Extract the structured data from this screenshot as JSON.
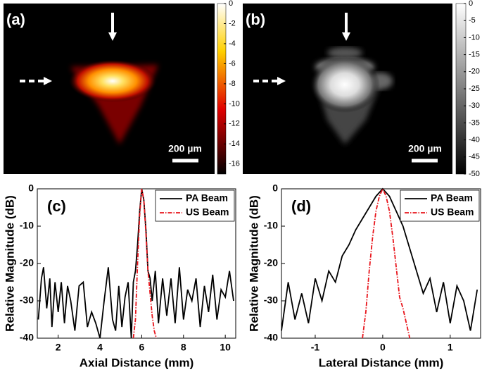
{
  "chart_data": [
    {
      "type": "image",
      "label": "(a)",
      "colormap": "hot",
      "clim": [
        -17,
        0
      ],
      "cticks": [
        0,
        -2,
        -4,
        -6,
        -8,
        -10,
        -12,
        -14,
        -16
      ],
      "scale_bar": "200 µm"
    },
    {
      "type": "image",
      "label": "(b)",
      "colormap": "gray",
      "clim": [
        -50,
        0
      ],
      "cticks": [
        0,
        -5,
        -10,
        -15,
        -20,
        -25,
        -30,
        -35,
        -40,
        -45,
        -50
      ],
      "scale_bar": "200 µm"
    },
    {
      "type": "line",
      "label": "(c)",
      "x_label": "Axial Distance (mm)",
      "y_label": "Relative Magnitude (dB)",
      "xlim": [
        1,
        10.5
      ],
      "ylim": [
        -40,
        0
      ],
      "xticks": [
        2,
        4,
        6,
        8,
        10
      ],
      "yticks": [
        0,
        -10,
        -20,
        -30,
        -40
      ],
      "legend": "upper right",
      "series": [
        {
          "name": "PA Beam",
          "color": "#000000",
          "style": "solid",
          "x": [
            1.05,
            1.2,
            1.3,
            1.45,
            1.6,
            1.7,
            1.85,
            2.0,
            2.15,
            2.3,
            2.45,
            2.6,
            2.8,
            3.0,
            3.2,
            3.4,
            3.6,
            3.8,
            4.0,
            4.2,
            4.4,
            4.6,
            4.75,
            4.9,
            5.05,
            5.2,
            5.35,
            5.5,
            5.6,
            5.7,
            5.8,
            5.9,
            6.0,
            6.1,
            6.2,
            6.3,
            6.4,
            6.5,
            6.65,
            6.8,
            7.0,
            7.2,
            7.4,
            7.6,
            7.8,
            8.0,
            8.2,
            8.4,
            8.6,
            8.8,
            9.0,
            9.2,
            9.4,
            9.6,
            9.8,
            10.0,
            10.2,
            10.4
          ],
          "values": [
            -35,
            -24,
            -21,
            -32,
            -24,
            -37,
            -25,
            -33,
            -25,
            -36,
            -26,
            -30,
            -38,
            -26,
            -25,
            -37,
            -33,
            -36,
            -40,
            -30,
            -21,
            -35,
            -38,
            -26,
            -37,
            -29,
            -25,
            -40,
            -25,
            -22,
            -15,
            -6,
            0,
            -3,
            -11,
            -22,
            -24,
            -30,
            -22,
            -36,
            -24,
            -34,
            -24,
            -36,
            -21,
            -35,
            -27,
            -30,
            -24,
            -37,
            -26,
            -33,
            -23,
            -35,
            -27,
            -29,
            -22,
            -30
          ]
        },
        {
          "name": "US Beam",
          "color": "#e8141b",
          "style": "dashdot",
          "x": [
            5.6,
            5.7,
            5.8,
            5.9,
            6.0,
            6.1,
            6.2,
            6.3,
            6.4,
            6.5,
            6.6,
            6.7
          ],
          "values": [
            -40,
            -35,
            -20,
            -7,
            0,
            -3,
            -12,
            -22,
            -28,
            -34,
            -38,
            -40
          ]
        }
      ]
    },
    {
      "type": "line",
      "label": "(d)",
      "x_label": "Lateral Distance (mm)",
      "y_label": "Relative Magnitude (dB)",
      "xlim": [
        -1.5,
        1.45
      ],
      "ylim": [
        -40,
        0
      ],
      "xticks": [
        -1,
        0,
        1
      ],
      "yticks": [
        0,
        -10,
        -20,
        -30,
        -40
      ],
      "legend": "upper right",
      "series": [
        {
          "name": "PA Beam",
          "color": "#000000",
          "style": "solid",
          "x": [
            -1.5,
            -1.4,
            -1.3,
            -1.2,
            -1.1,
            -1.0,
            -0.9,
            -0.8,
            -0.7,
            -0.6,
            -0.5,
            -0.4,
            -0.3,
            -0.2,
            -0.1,
            0,
            0.1,
            0.2,
            0.3,
            0.4,
            0.5,
            0.6,
            0.7,
            0.8,
            0.9,
            1.0,
            1.1,
            1.2,
            1.3,
            1.4
          ],
          "values": [
            -38,
            -25,
            -35,
            -28,
            -36,
            -24,
            -30,
            -22,
            -25,
            -18,
            -15,
            -11,
            -8,
            -5,
            -2,
            0,
            -2,
            -6,
            -10,
            -16,
            -22,
            -28,
            -24,
            -33,
            -25,
            -36,
            -26,
            -30,
            -38,
            -27
          ]
        },
        {
          "name": "US Beam",
          "color": "#e8141b",
          "style": "dashdot",
          "x": [
            -0.3,
            -0.25,
            -0.2,
            -0.15,
            -0.1,
            -0.05,
            0,
            0.05,
            0.1,
            0.15,
            0.2,
            0.25,
            0.3,
            0.35,
            0.4
          ],
          "values": [
            -40,
            -33,
            -22,
            -13,
            -6,
            -2,
            0,
            -2,
            -6,
            -13,
            -21,
            -29,
            -32,
            -36,
            -40
          ]
        }
      ]
    }
  ]
}
